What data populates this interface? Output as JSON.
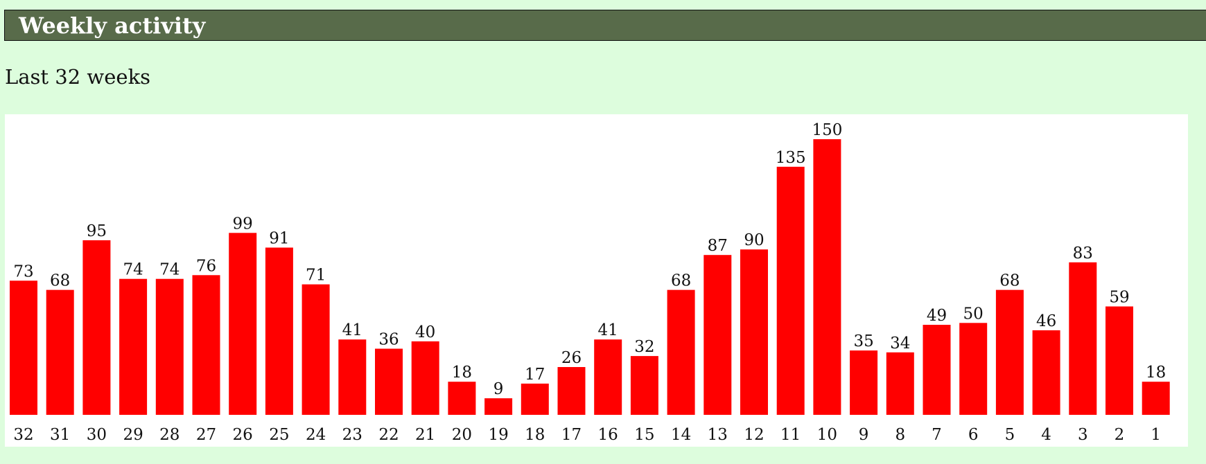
{
  "header": {
    "title": "Weekly activity"
  },
  "subtitle": "Last 32 weeks",
  "colors": {
    "page_background": "#ddfddd",
    "header_background": "#586b4a",
    "header_text": "#ffffff",
    "chart_background": "#ffffff",
    "bar": "#ff0000"
  },
  "chart_data": {
    "type": "bar",
    "title": "",
    "xlabel": "",
    "ylabel": "",
    "categories": [
      "32",
      "31",
      "30",
      "29",
      "28",
      "27",
      "26",
      "25",
      "24",
      "23",
      "22",
      "21",
      "20",
      "19",
      "18",
      "17",
      "16",
      "15",
      "14",
      "13",
      "12",
      "11",
      "10",
      "9",
      "8",
      "7",
      "6",
      "5",
      "4",
      "3",
      "2",
      "1"
    ],
    "values": [
      73,
      68,
      95,
      74,
      74,
      76,
      99,
      91,
      71,
      41,
      36,
      40,
      18,
      9,
      17,
      26,
      41,
      32,
      68,
      87,
      90,
      135,
      150,
      35,
      34,
      49,
      50,
      68,
      46,
      83,
      59,
      18
    ],
    "ylim": [
      0,
      150
    ],
    "grid": false,
    "legend": "none",
    "data_labels": true
  }
}
